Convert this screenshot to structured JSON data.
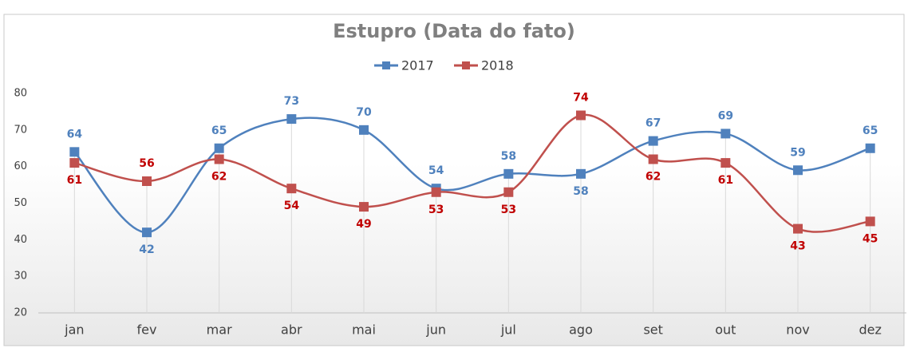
{
  "chart_data": {
    "type": "line",
    "title": "Estupro (Data do fato)",
    "categories": [
      "jan",
      "fev",
      "mar",
      "abr",
      "mai",
      "jun",
      "jul",
      "ago",
      "set",
      "out",
      "nov",
      "dez"
    ],
    "series": [
      {
        "name": "2017",
        "color": "#4f81bd",
        "values": [
          64,
          42,
          65,
          73,
          70,
          54,
          58,
          58,
          67,
          69,
          59,
          65
        ]
      },
      {
        "name": "2018",
        "color": "#c0504d",
        "values": [
          61,
          56,
          62,
          54,
          49,
          53,
          53,
          74,
          62,
          61,
          43,
          45
        ]
      }
    ],
    "ylim": [
      20,
      80
    ],
    "yticks": [
      20,
      30,
      40,
      50,
      60,
      70,
      80
    ],
    "smooth": true,
    "drop_lines": true,
    "grid": false,
    "legend": "top"
  }
}
